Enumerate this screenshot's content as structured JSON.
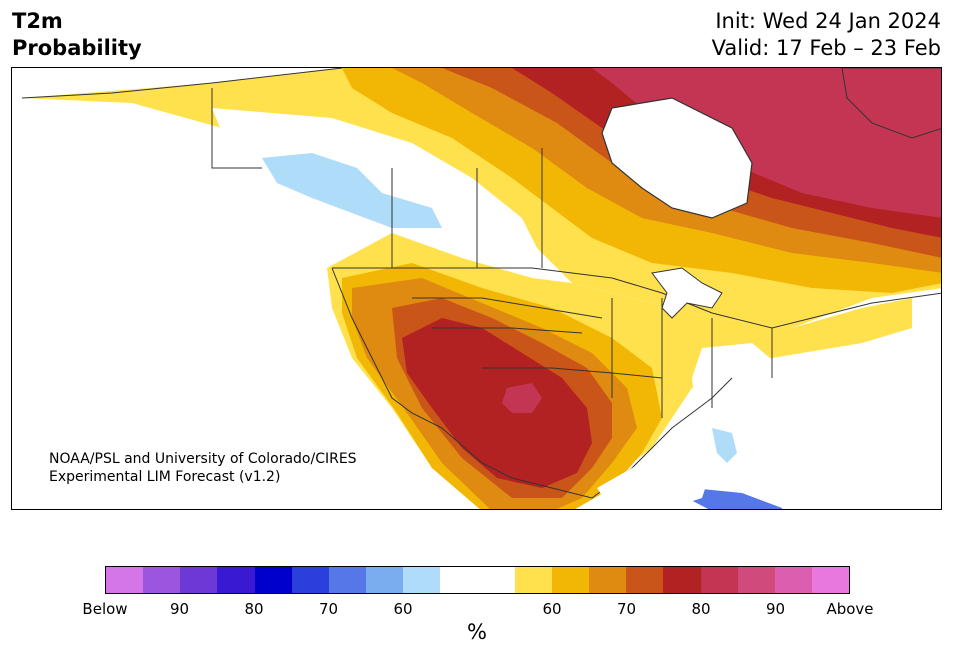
{
  "header": {
    "title_line1": "T2m",
    "title_line2": "Probability",
    "init": "Init: Wed 24 Jan 2024",
    "valid": "Valid: 17 Feb – 23 Feb"
  },
  "credit": {
    "line1": "NOAA/PSL and University of Colorado/CIRES",
    "line2": "Experimental LIM Forecast (v1.2)"
  },
  "colorbar": {
    "colors": [
      "#d475e8",
      "#9c55de",
      "#6c38d6",
      "#3a19d3",
      "#0000cc",
      "#2a3fdb",
      "#5577e8",
      "#78aef0",
      "#aedcf9",
      "#ffffff",
      "#ffffff",
      "#ffe14d",
      "#f2b705",
      "#df8a10",
      "#c95518",
      "#b22222",
      "#c43553",
      "#d04a7c",
      "#db5fae",
      "#e878dc"
    ],
    "tick_labels": [
      "Below",
      "90",
      "80",
      "70",
      "60",
      "60",
      "70",
      "80",
      "90",
      "Above"
    ],
    "unit": "%"
  }
}
